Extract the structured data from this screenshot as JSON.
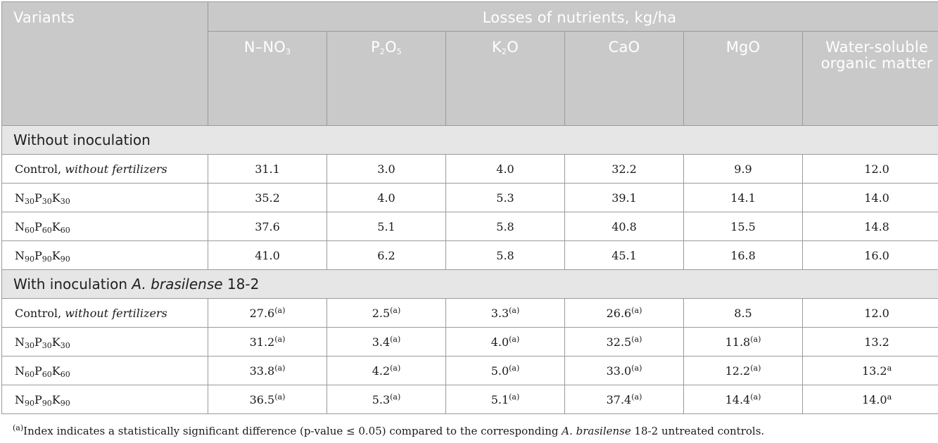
{
  "header": {
    "variants": "Variants",
    "group": "Losses of nutrients, kg/ha",
    "columns": [
      {
        "main": "N–NO",
        "sub": "3"
      },
      {
        "p": "P",
        "p_sub": "2",
        "o": "O",
        "o_sub": "5"
      },
      {
        "k": "K",
        "k_sub": "2",
        "o": "O"
      },
      {
        "label": "CaO"
      },
      {
        "label": "MgO"
      },
      {
        "label": "Water-soluble organic matter"
      }
    ]
  },
  "sections": [
    {
      "title": "Without inoculation",
      "rows": [
        {
          "label": "Control, ",
          "label_italic": "without fertilizers",
          "values": [
            "31.1",
            "3.0",
            "4.0",
            "32.2",
            "9.9",
            "12.0"
          ],
          "notes": [
            "",
            "",
            "",
            "",
            "",
            ""
          ]
        },
        {
          "dose": "30",
          "values": [
            "35.2",
            "4.0",
            "5.3",
            "39.1",
            "14.1",
            "14.0"
          ],
          "notes": [
            "",
            "",
            "",
            "",
            "",
            ""
          ]
        },
        {
          "dose": "60",
          "values": [
            "37.6",
            "5.1",
            "5.8",
            "40.8",
            "15.5",
            "14.8"
          ],
          "notes": [
            "",
            "",
            "",
            "",
            "",
            ""
          ]
        },
        {
          "dose": "90",
          "values": [
            "41.0",
            "6.2",
            "5.8",
            "45.1",
            "16.8",
            "16.0"
          ],
          "notes": [
            "",
            "",
            "",
            "",
            "",
            ""
          ]
        }
      ]
    },
    {
      "title_prefix": "With inoculation ",
      "title_italic": "A. brasilense",
      "title_suffix": " 18-2",
      "rows": [
        {
          "label": "Control, ",
          "label_italic": "without fertilizers",
          "values": [
            "27.6",
            "2.5",
            "3.3",
            "26.6",
            "8.5",
            "12.0"
          ],
          "notes": [
            "(a)",
            "(a)",
            "(a)",
            "(a)",
            "",
            ""
          ]
        },
        {
          "dose": "30",
          "values": [
            "31.2",
            "3.4",
            "4.0",
            "32.5",
            "11.8",
            "13.2"
          ],
          "notes": [
            "(a)",
            "(a)",
            "(a)",
            "(a)",
            "(a)",
            ""
          ]
        },
        {
          "dose": "60",
          "values": [
            "33.8",
            "4.2",
            "5.0",
            "33.0",
            "12.2",
            "13.2"
          ],
          "notes": [
            "(a)",
            "(a)",
            "(a)",
            "(a)",
            "(a)",
            "a"
          ]
        },
        {
          "dose": "90",
          "values": [
            "36.5",
            "5.3",
            "5.1",
            "37.4",
            "14.4",
            "14.0"
          ],
          "notes": [
            "(a)",
            "(a)",
            "(a)",
            "(a)",
            "(a)",
            "a"
          ]
        }
      ]
    }
  ],
  "footnote": {
    "mark": "(a)",
    "text_before": "Index indicates a statistically significant difference (p-value ≤ 0.05) compared to the corresponding ",
    "italic": "A. brasilense",
    "text_after": " 18-2 untreated controls."
  },
  "nutrient_letters": {
    "n": "N",
    "p": "P",
    "k": "K"
  }
}
